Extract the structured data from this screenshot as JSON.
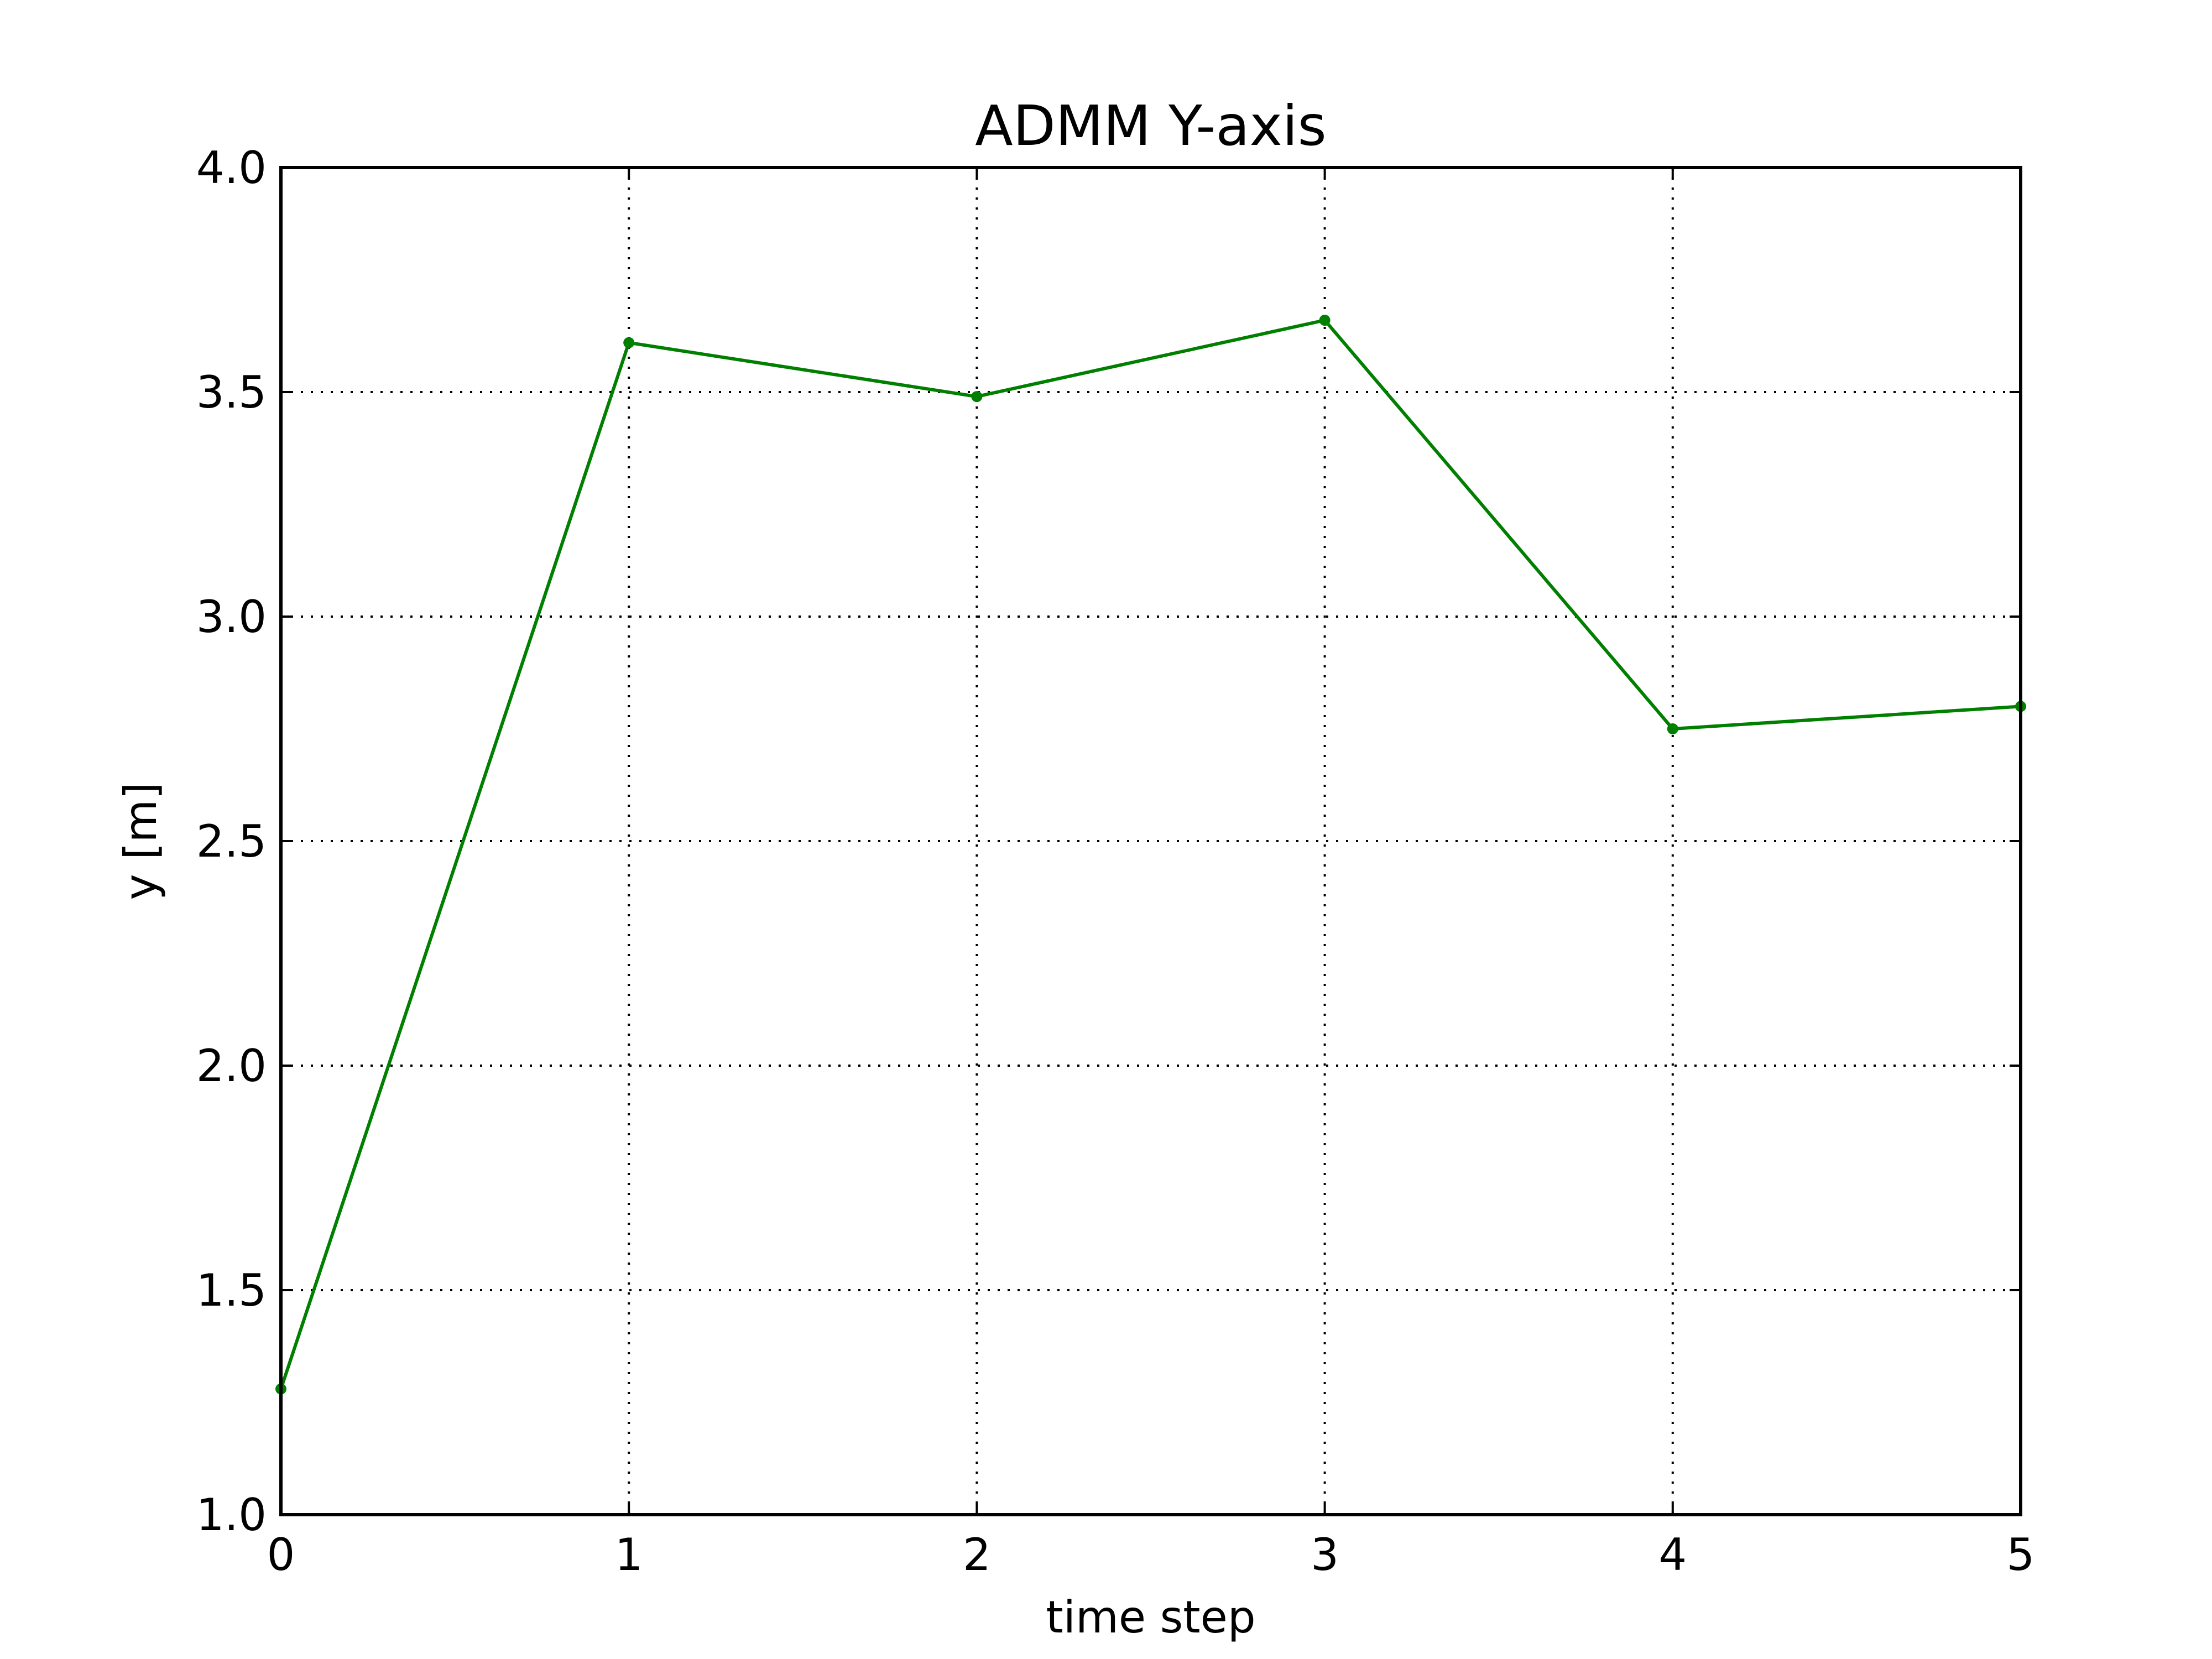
{
  "chart_data": {
    "type": "line",
    "title": "ADMM Y-axis",
    "xlabel": "time step",
    "ylabel": "y [m]",
    "xlim": [
      0,
      5
    ],
    "ylim": [
      1.0,
      4.0
    ],
    "xticks": [
      "0",
      "1",
      "2",
      "3",
      "4",
      "5"
    ],
    "yticks": [
      "1.0",
      "1.5",
      "2.0",
      "2.5",
      "3.0",
      "3.5",
      "4.0"
    ],
    "grid": true,
    "grid_style": "dotted",
    "x": [
      0,
      1,
      2,
      3,
      4,
      5
    ],
    "series": [
      {
        "values": [
          1.28,
          3.61,
          3.49,
          3.66,
          2.75,
          2.8
        ],
        "color": "#007f00",
        "marker": "dot"
      }
    ]
  }
}
